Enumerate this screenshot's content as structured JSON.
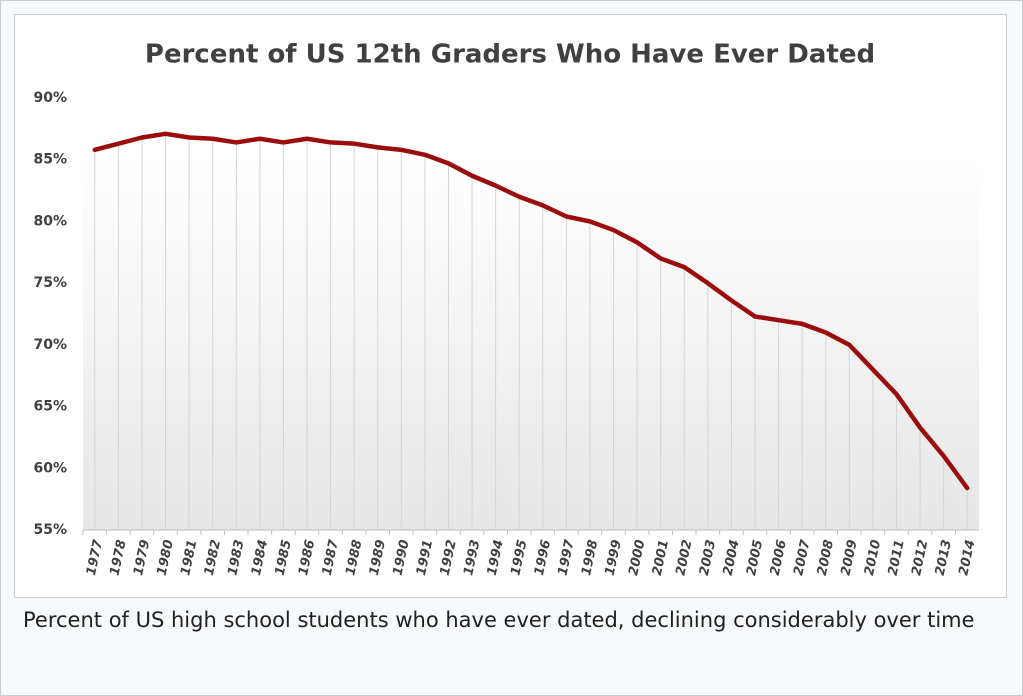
{
  "chart_data": {
    "type": "line",
    "title": "Percent of US 12th Graders Who Have Ever Dated",
    "categories": [
      "1977",
      "1978",
      "1979",
      "1980",
      "1981",
      "1982",
      "1983",
      "1984",
      "1985",
      "1986",
      "1987",
      "1988",
      "1989",
      "1990",
      "1991",
      "1992",
      "1993",
      "1994",
      "1995",
      "1996",
      "1997",
      "1998",
      "1999",
      "2000",
      "2001",
      "2002",
      "2003",
      "2004",
      "2005",
      "2006",
      "2007",
      "2008",
      "2009",
      "2010",
      "2011",
      "2012",
      "2013",
      "2014"
    ],
    "values": [
      85.8,
      86.3,
      86.8,
      87.1,
      86.8,
      86.7,
      86.4,
      86.7,
      86.4,
      86.7,
      86.4,
      86.3,
      86.0,
      85.8,
      85.4,
      84.7,
      83.7,
      82.9,
      82.0,
      81.3,
      80.4,
      80.0,
      79.3,
      78.3,
      77.0,
      76.3,
      75.0,
      73.6,
      72.3,
      72.0,
      71.7,
      71.0,
      70.0,
      68.0,
      66.0,
      63.3,
      61.0,
      58.4
    ],
    "color": "#9b0d0d",
    "ylim": [
      55,
      90
    ],
    "yticks": [
      {
        "value": 55,
        "label": "55%"
      },
      {
        "value": 60,
        "label": "60%"
      },
      {
        "value": 65,
        "label": "65%"
      },
      {
        "value": 70,
        "label": "70%"
      },
      {
        "value": 75,
        "label": "75%"
      },
      {
        "value": 80,
        "label": "80%"
      },
      {
        "value": 85,
        "label": "85%"
      },
      {
        "value": 90,
        "label": "90%"
      }
    ],
    "drop_lines": true
  },
  "caption": "Percent of US high school students who have ever dated, declining considerably over time"
}
